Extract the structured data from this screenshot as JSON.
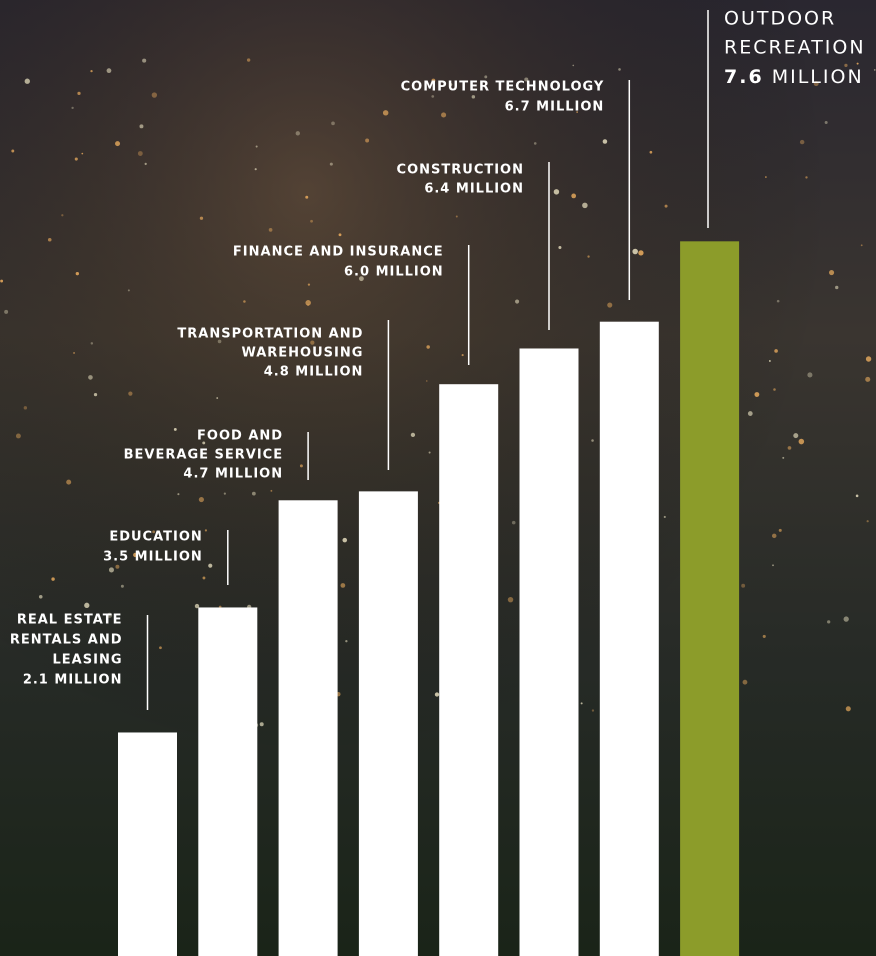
{
  "chart_data": {
    "type": "bar",
    "categories": [
      [
        "REAL ESTATE",
        "RENTALS AND",
        "LEASING"
      ],
      [
        "EDUCATION"
      ],
      [
        "FOOD AND",
        "BEVERAGE SERVICE"
      ],
      [
        "TRANSPORTATION AND",
        "WAREHOUSING"
      ],
      [
        "FINANCE AND INSURANCE"
      ],
      [
        "CONSTRUCTION"
      ],
      [
        "COMPUTER TECHNOLOGY"
      ],
      [
        "OUTDOOR",
        "RECREATION"
      ]
    ],
    "values": [
      2.1,
      3.5,
      4.7,
      4.8,
      6.0,
      6.4,
      6.7,
      7.6
    ],
    "value_labels": [
      "2.1 MILLION",
      "3.5 MILLION",
      "4.7 MILLION",
      "4.8 MILLION",
      "6.0 MILLION",
      "6.4 MILLION",
      "6.7 MILLION",
      "7.6 MILLION"
    ],
    "colors": [
      "#ffffff",
      "#ffffff",
      "#ffffff",
      "#ffffff",
      "#ffffff",
      "#ffffff",
      "#ffffff",
      "#8c9c2a"
    ]
  }
}
